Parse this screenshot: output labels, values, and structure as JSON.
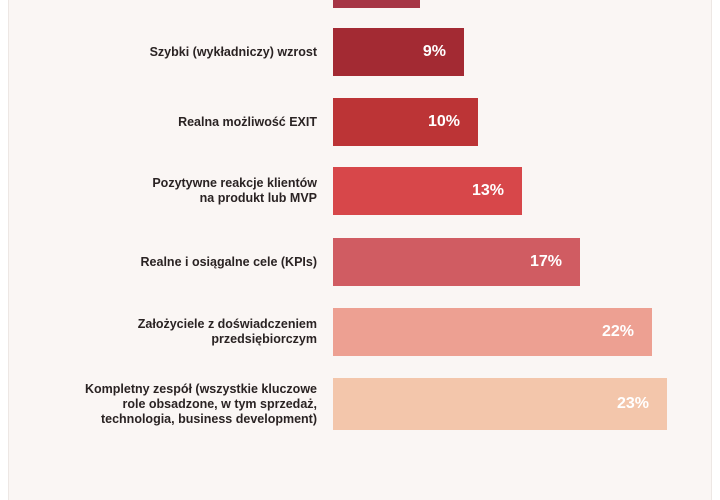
{
  "chart_data": {
    "type": "bar",
    "orientation": "horizontal",
    "categories": [
      "",
      "Szybki (wykładniczy) wzrost",
      "Realna możliwość EXIT",
      "Pozytywne reakcje klientów na produkt lub MVP",
      "Realne i osiągalne cele (KPIs)",
      "Założyciele z doświadczeniem przedsiębiorczym",
      "Kompletny zespół (wszystkie kluczowe role obsadzone, w tym sprzedaż, technologia, business development)"
    ],
    "label_lines": [
      [],
      [
        "Szybki (wykładniczy) wzrost"
      ],
      [
        "Realna możliwość EXIT"
      ],
      [
        "Pozytywne reakcje klientów",
        "na produkt lub MVP"
      ],
      [
        "Realne i osiągalne cele (KPIs)"
      ],
      [
        "Założyciele z doświadczeniem",
        "przedsiębiorczym"
      ],
      [
        "Kompletny zespół (wszystkie kluczowe",
        "role obsadzone, w tym sprzedaż,",
        "technologia, business development)"
      ]
    ],
    "values": [
      6,
      9,
      10,
      13,
      17,
      22,
      23
    ],
    "value_labels": [
      "",
      "9%",
      "10%",
      "13%",
      "17%",
      "22%",
      "23%"
    ],
    "colors": [
      "#a63545",
      "#a32a33",
      "#bc3436",
      "#d7474a",
      "#d05c62",
      "#eda092",
      "#f3c6ab"
    ],
    "unit": "%"
  }
}
